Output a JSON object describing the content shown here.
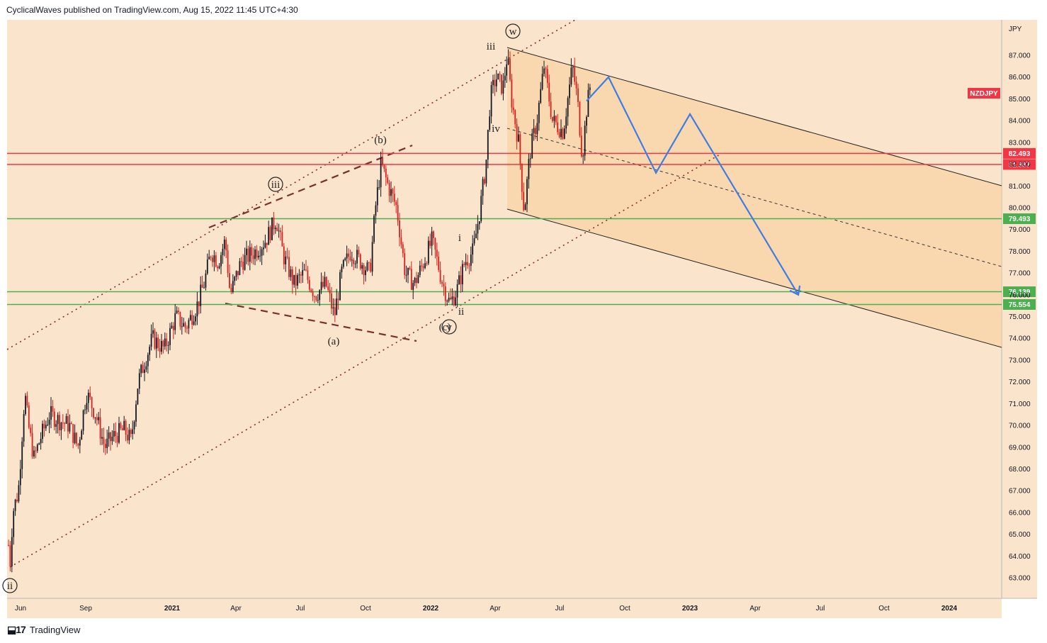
{
  "header": {
    "text": "CyclicalWaves published on TradingView.com, Aug 15, 2022 11:45 UTC+4:30"
  },
  "footer": {
    "brand": "TradingView",
    "logo_icon": "tradingview-logo-icon"
  },
  "colors": {
    "background": "#fae4cc",
    "projection_fill": "#f8d3a6",
    "red_level": "#f23645",
    "green_level": "#4caf50",
    "forecast": "#3d7ee3",
    "channel_dotted": "#8b2a2a",
    "triangle_dashed": "#7a2f2f",
    "candle_up": "#131722",
    "candle_down": "#d91e1e"
  },
  "chart_data": {
    "type": "candlestick",
    "symbol": "NZDJPY",
    "currency": "JPY",
    "price_axis": {
      "ticks": [
        "87.000",
        "86.000",
        "85.000",
        "84.000",
        "83.000",
        "82.000",
        "81.000",
        "80.000",
        "79.000",
        "78.000",
        "77.000",
        "76.000",
        "75.000",
        "74.000",
        "73.000",
        "72.000",
        "71.000",
        "70.000",
        "69.000",
        "68.000",
        "67.000",
        "66.000",
        "65.000",
        "64.000",
        "63.000"
      ]
    },
    "time_axis": {
      "ticks": [
        {
          "label": "Jun",
          "bold": false
        },
        {
          "label": "Sep",
          "bold": false
        },
        {
          "label": "2021",
          "bold": true
        },
        {
          "label": "Apr",
          "bold": false
        },
        {
          "label": "Jul",
          "bold": false
        },
        {
          "label": "Oct",
          "bold": false
        },
        {
          "label": "2022",
          "bold": true
        },
        {
          "label": "Apr",
          "bold": false
        },
        {
          "label": "Jul",
          "bold": false
        },
        {
          "label": "Oct",
          "bold": false
        },
        {
          "label": "2023",
          "bold": true
        },
        {
          "label": "Apr",
          "bold": false
        },
        {
          "label": "Jul",
          "bold": false
        },
        {
          "label": "Oct",
          "bold": false
        },
        {
          "label": "2024",
          "bold": true
        }
      ]
    },
    "horizontal_levels": [
      {
        "label": "82.493",
        "value": 82.493,
        "color": "red"
      },
      {
        "label": "81.987",
        "value": 81.987,
        "color": "red"
      },
      {
        "label": "79.493",
        "value": 79.493,
        "color": "green"
      },
      {
        "label": "76.139",
        "value": 76.139,
        "color": "green"
      },
      {
        "label": "75.554",
        "value": 75.554,
        "color": "green"
      }
    ],
    "wave_labels": [
      {
        "text": "ii",
        "circled": true
      },
      {
        "text": "iii",
        "circled": true
      },
      {
        "text": "(a)",
        "circled": false
      },
      {
        "text": "(b)",
        "circled": false
      },
      {
        "text": "(c)",
        "circled": false
      },
      {
        "text": "y",
        "circled": true
      },
      {
        "text": "w",
        "circled": true
      },
      {
        "text": "i",
        "circled": false
      },
      {
        "text": "ii",
        "circled": false
      },
      {
        "text": "iii",
        "circled": false
      },
      {
        "text": "iv",
        "circled": false
      }
    ],
    "forecast_path": [
      {
        "date": "2022-08",
        "price": 84.9
      },
      {
        "date": "2022-09",
        "price": 86.0
      },
      {
        "date": "2022-11",
        "price": 81.6
      },
      {
        "date": "2022-12",
        "price": 84.3
      },
      {
        "date": "2023-06",
        "price": 76.0
      }
    ]
  }
}
